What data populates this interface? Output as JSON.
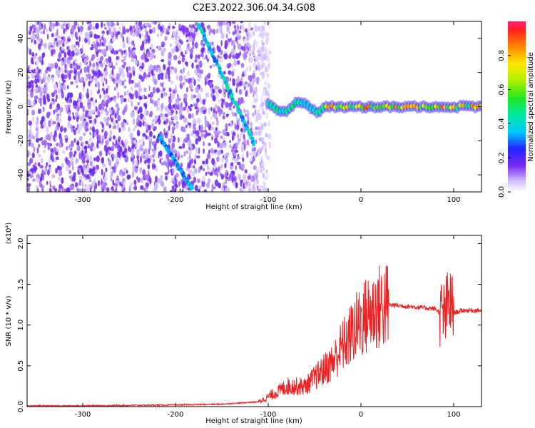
{
  "title": "C2E3.2022.306.04.34.G08",
  "chart_data": [
    {
      "type": "heatmap",
      "xlabel": "Height of straight line (km)",
      "ylabel": "Frequency (Hz)",
      "xlim": [
        -360,
        130
      ],
      "ylim": [
        -50,
        50
      ],
      "x_ticks": [
        -300,
        -200,
        -100,
        0,
        100
      ],
      "y_ticks": [
        -40,
        -20,
        0,
        20,
        40
      ],
      "colorbar": {
        "label": "Normalized spectral amplitude",
        "range": [
          0.0,
          1.0
        ],
        "ticks": [
          0.0,
          0.2,
          0.4,
          0.6,
          0.8
        ],
        "tick_labels": [
          "0.0",
          "0.2",
          "0.4",
          "0.6",
          "0.8"
        ]
      },
      "features": [
        {
          "x": [
            -175,
            -115
          ],
          "y": [
            48,
            -22
          ],
          "amplitude": 0.4
        },
        {
          "x": [
            -218,
            -182
          ],
          "y": [
            -17,
            -48
          ],
          "amplitude": 0.35
        },
        {
          "x": [
            -100,
            130
          ],
          "y": [
            0,
            0
          ],
          "amplitude": 0.8
        }
      ]
    },
    {
      "type": "line",
      "xlabel": "Height of straight line (km)",
      "ylabel": "SNR (10 * v/v)",
      "y_multiplier": "(x10⁴)",
      "xlim": [
        -360,
        130
      ],
      "ylim": [
        0,
        2.1
      ],
      "x_ticks": [
        -300,
        -200,
        -100,
        0,
        100
      ],
      "y_ticks": [
        0.0,
        0.5,
        1.0,
        1.5,
        2.0
      ],
      "series": [
        {
          "color": "#ee2222",
          "x": [
            -360,
            -300,
            -250,
            -200,
            -150,
            -110,
            -100,
            -90,
            -80,
            -70,
            -60,
            -50,
            -40,
            -30,
            -20,
            -15,
            -10,
            0,
            10,
            20,
            30,
            40,
            60,
            80,
            90,
            95,
            100,
            110,
            120,
            130
          ],
          "y": [
            0.01,
            0.01,
            0.015,
            0.02,
            0.03,
            0.06,
            0.12,
            0.18,
            0.25,
            0.25,
            0.25,
            0.35,
            0.45,
            0.55,
            0.75,
            0.8,
            0.9,
            1.05,
            1.15,
            1.22,
            1.25,
            1.24,
            1.22,
            1.2,
            1.1,
            1.3,
            1.15,
            1.18,
            1.18,
            1.18
          ]
        }
      ]
    }
  ]
}
